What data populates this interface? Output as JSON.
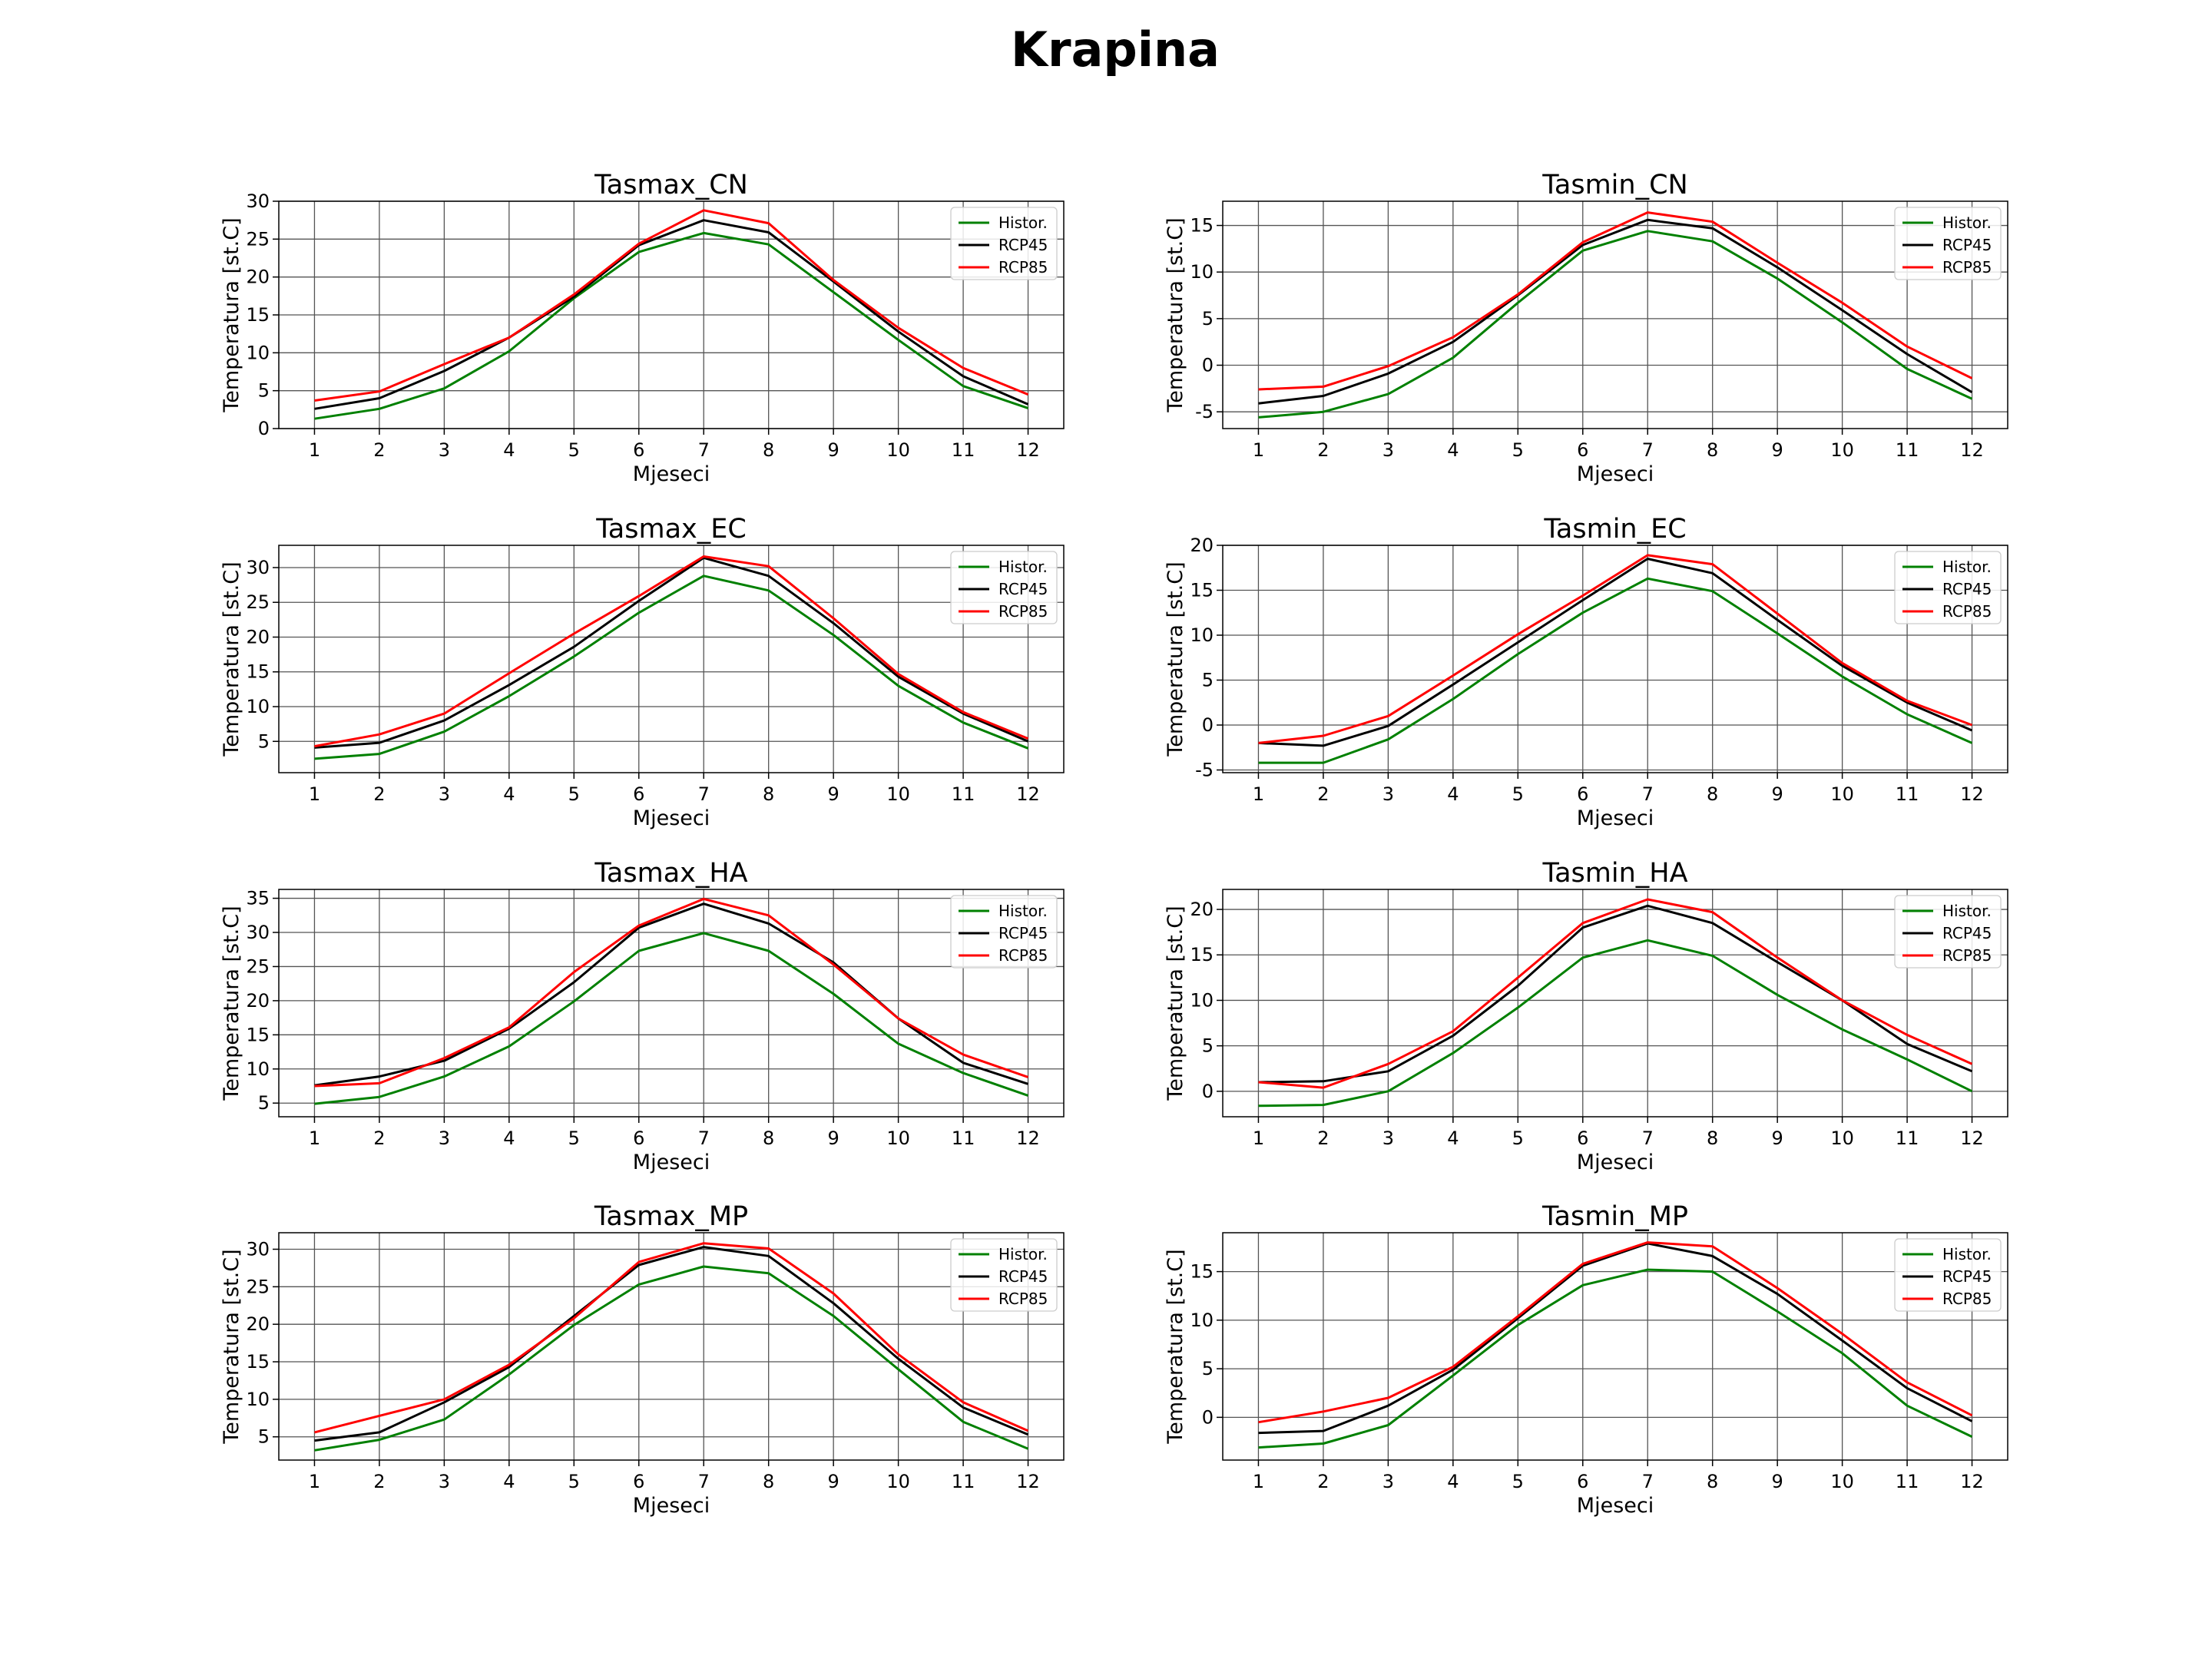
{
  "suptitle": "Krapina",
  "colors": {
    "Histor.": "#008000",
    "RCP45": "#000000",
    "RCP85": "#ff0000"
  },
  "chart_data": [
    {
      "type": "line",
      "title": "Tasmax_CN",
      "xlabel": "Mjeseci",
      "ylabel": "Temperatura [st.C]",
      "x": [
        1,
        2,
        3,
        4,
        5,
        6,
        7,
        8,
        9,
        10,
        11,
        12
      ],
      "xlim": [
        0.45,
        12.55
      ],
      "ylim": [
        0,
        30
      ],
      "yticks": [
        0,
        5,
        10,
        15,
        20,
        25,
        30
      ],
      "grid": true,
      "legend": "top-right",
      "series": [
        {
          "name": "Histor.",
          "values": [
            1.3,
            2.6,
            5.3,
            10.2,
            17.2,
            23.3,
            25.8,
            24.3,
            18.0,
            11.7,
            5.6,
            2.7
          ]
        },
        {
          "name": "RCP45",
          "values": [
            2.6,
            4.0,
            7.6,
            12.0,
            17.4,
            24.2,
            27.5,
            25.9,
            19.4,
            12.8,
            6.9,
            3.2
          ]
        },
        {
          "name": "RCP85",
          "values": [
            3.7,
            4.9,
            8.5,
            12.0,
            17.7,
            24.4,
            28.8,
            27.1,
            19.6,
            13.3,
            8.0,
            4.5
          ]
        }
      ]
    },
    {
      "type": "line",
      "title": "Tasmin_CN",
      "xlabel": "Mjeseci",
      "ylabel": "Temperatura [st.C]",
      "x": [
        1,
        2,
        3,
        4,
        5,
        6,
        7,
        8,
        9,
        10,
        11,
        12
      ],
      "xlim": [
        0.45,
        12.55
      ],
      "ylim": [
        -6.8,
        17.6
      ],
      "yticks": [
        -5,
        0,
        5,
        10,
        15
      ],
      "grid": true,
      "legend": "top-right",
      "series": [
        {
          "name": "Histor.",
          "values": [
            -5.6,
            -5.0,
            -3.1,
            0.8,
            6.7,
            12.3,
            14.4,
            13.3,
            9.3,
            4.6,
            -0.4,
            -3.6
          ]
        },
        {
          "name": "RCP45",
          "values": [
            -4.1,
            -3.3,
            -0.9,
            2.5,
            7.5,
            12.9,
            15.6,
            14.7,
            10.5,
            5.9,
            1.2,
            -2.9
          ]
        },
        {
          "name": "RCP85",
          "values": [
            -2.6,
            -2.3,
            -0.1,
            3.0,
            7.6,
            13.2,
            16.4,
            15.4,
            11.0,
            6.7,
            2.0,
            -1.4
          ]
        }
      ]
    },
    {
      "type": "line",
      "title": "Tasmax_EC",
      "xlabel": "Mjeseci",
      "ylabel": "Temperatura [st.C]",
      "x": [
        1,
        2,
        3,
        4,
        5,
        6,
        7,
        8,
        9,
        10,
        11,
        12
      ],
      "xlim": [
        0.45,
        12.55
      ],
      "ylim": [
        0.5,
        33.2
      ],
      "yticks": [
        5,
        10,
        15,
        20,
        25,
        30
      ],
      "grid": true,
      "legend": "top-right",
      "series": [
        {
          "name": "Histor.",
          "values": [
            2.5,
            3.2,
            6.4,
            11.5,
            17.2,
            23.5,
            28.8,
            26.7,
            20.3,
            13.0,
            7.7,
            4.0
          ]
        },
        {
          "name": "RCP45",
          "values": [
            4.1,
            4.8,
            8.0,
            13.1,
            18.6,
            25.2,
            31.4,
            28.8,
            22.0,
            14.3,
            9.0,
            5.0
          ]
        },
        {
          "name": "RCP85",
          "values": [
            4.3,
            6.0,
            9.0,
            14.8,
            20.5,
            25.9,
            31.6,
            30.2,
            22.7,
            14.7,
            9.2,
            5.4
          ]
        }
      ]
    },
    {
      "type": "line",
      "title": "Tasmin_EC",
      "xlabel": "Mjeseci",
      "ylabel": "Temperatura [st.C]",
      "x": [
        1,
        2,
        3,
        4,
        5,
        6,
        7,
        8,
        9,
        10,
        11,
        12
      ],
      "xlim": [
        0.45,
        12.55
      ],
      "ylim": [
        -5.3,
        20.0
      ],
      "yticks": [
        -5,
        0,
        5,
        10,
        15,
        20
      ],
      "grid": true,
      "legend": "top-right",
      "series": [
        {
          "name": "Histor.",
          "values": [
            -4.2,
            -4.2,
            -1.6,
            2.9,
            7.9,
            12.5,
            16.3,
            14.9,
            10.2,
            5.4,
            1.2,
            -2.0
          ]
        },
        {
          "name": "RCP45",
          "values": [
            -2.0,
            -2.3,
            -0.1,
            4.5,
            9.2,
            13.9,
            18.5,
            16.9,
            11.7,
            6.6,
            2.5,
            -0.6
          ]
        },
        {
          "name": "RCP85",
          "values": [
            -2.0,
            -1.2,
            1.0,
            5.5,
            10.1,
            14.4,
            18.9,
            17.9,
            12.4,
            6.9,
            2.7,
            0.0
          ]
        }
      ]
    },
    {
      "type": "line",
      "title": "Tasmax_HA",
      "xlabel": "Mjeseci",
      "ylabel": "Temperatura [st.C]",
      "x": [
        1,
        2,
        3,
        4,
        5,
        6,
        7,
        8,
        9,
        10,
        11,
        12
      ],
      "xlim": [
        0.45,
        12.55
      ],
      "ylim": [
        3.0,
        36.3
      ],
      "yticks": [
        5,
        10,
        15,
        20,
        25,
        30,
        35
      ],
      "grid": true,
      "legend": "top-right",
      "series": [
        {
          "name": "Histor.",
          "values": [
            4.9,
            5.9,
            8.9,
            13.3,
            19.9,
            27.3,
            29.9,
            27.3,
            21.0,
            13.7,
            9.4,
            6.1
          ]
        },
        {
          "name": "RCP45",
          "values": [
            7.6,
            8.9,
            11.2,
            15.9,
            22.7,
            30.7,
            34.2,
            31.3,
            25.6,
            17.4,
            10.9,
            7.8
          ]
        },
        {
          "name": "RCP85",
          "values": [
            7.5,
            7.9,
            11.6,
            16.1,
            24.2,
            31.0,
            34.9,
            32.5,
            25.3,
            17.4,
            12.1,
            8.8
          ]
        }
      ]
    },
    {
      "type": "line",
      "title": "Tasmin_HA",
      "xlabel": "Mjeseci",
      "ylabel": "Temperatura [st.C]",
      "x": [
        1,
        2,
        3,
        4,
        5,
        6,
        7,
        8,
        9,
        10,
        11,
        12
      ],
      "xlim": [
        0.45,
        12.55
      ],
      "ylim": [
        -2.8,
        22.2
      ],
      "yticks": [
        0,
        5,
        10,
        15,
        20
      ],
      "grid": true,
      "legend": "top-right",
      "series": [
        {
          "name": "Histor.",
          "values": [
            -1.6,
            -1.5,
            0.0,
            4.2,
            9.2,
            14.7,
            16.6,
            14.9,
            10.6,
            6.8,
            3.5,
            0.0
          ]
        },
        {
          "name": "RCP45",
          "values": [
            1.0,
            1.1,
            2.2,
            6.1,
            11.6,
            18.0,
            20.4,
            18.5,
            14.2,
            10.0,
            5.2,
            2.2
          ]
        },
        {
          "name": "RCP85",
          "values": [
            1.0,
            0.4,
            3.0,
            6.6,
            12.5,
            18.5,
            21.1,
            19.7,
            14.7,
            10.0,
            6.2,
            3.0
          ]
        }
      ]
    },
    {
      "type": "line",
      "title": "Tasmax_MP",
      "xlabel": "Mjeseci",
      "ylabel": "Temperatura [st.C]",
      "x": [
        1,
        2,
        3,
        4,
        5,
        6,
        7,
        8,
        9,
        10,
        11,
        12
      ],
      "xlim": [
        0.45,
        12.55
      ],
      "ylim": [
        1.9,
        32.2
      ],
      "yticks": [
        5,
        10,
        15,
        20,
        25,
        30
      ],
      "grid": true,
      "legend": "top-right",
      "series": [
        {
          "name": "Histor.",
          "values": [
            3.2,
            4.6,
            7.3,
            13.3,
            19.9,
            25.3,
            27.7,
            26.8,
            21.1,
            14.0,
            7.0,
            3.4
          ]
        },
        {
          "name": "RCP45",
          "values": [
            4.5,
            5.6,
            9.6,
            14.3,
            21.1,
            27.9,
            30.3,
            29.1,
            22.8,
            15.4,
            8.9,
            5.3
          ]
        },
        {
          "name": "RCP85",
          "values": [
            5.6,
            7.8,
            10.0,
            14.6,
            20.8,
            28.3,
            30.8,
            30.1,
            24.1,
            16.0,
            9.6,
            5.8
          ]
        }
      ]
    },
    {
      "type": "line",
      "title": "Tasmin_MP",
      "xlabel": "Mjeseci",
      "ylabel": "Temperatura [st.C]",
      "x": [
        1,
        2,
        3,
        4,
        5,
        6,
        7,
        8,
        9,
        10,
        11,
        12
      ],
      "xlim": [
        0.45,
        12.55
      ],
      "ylim": [
        -4.4,
        19.0
      ],
      "yticks": [
        0,
        5,
        10,
        15
      ],
      "grid": true,
      "legend": "top-right",
      "series": [
        {
          "name": "Histor.",
          "values": [
            -3.1,
            -2.7,
            -0.8,
            4.3,
            9.5,
            13.6,
            15.2,
            15.0,
            10.9,
            6.6,
            1.2,
            -2.0
          ]
        },
        {
          "name": "RCP45",
          "values": [
            -1.6,
            -1.4,
            1.2,
            4.9,
            10.2,
            15.6,
            17.9,
            16.6,
            12.7,
            7.9,
            3.0,
            -0.4
          ]
        },
        {
          "name": "RCP85",
          "values": [
            -0.5,
            0.6,
            2.0,
            5.2,
            10.4,
            15.8,
            18.0,
            17.6,
            13.3,
            8.6,
            3.6,
            0.2
          ]
        }
      ]
    }
  ]
}
